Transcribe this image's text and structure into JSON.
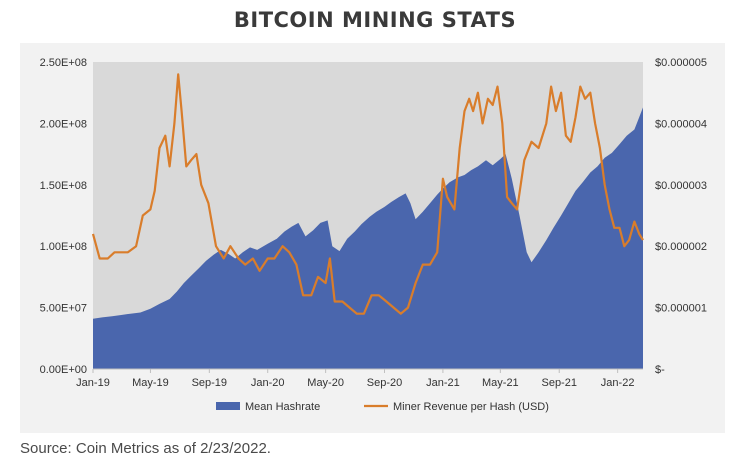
{
  "title": "BITCOIN MINING STATS",
  "source_note": "Source: Coin Metrics as of 2/23/2022.",
  "colors": {
    "panel_background": "#f2f2f2",
    "plot_background": "#d9d9d9",
    "hashrate": "#4a66ad",
    "revenue": "#d97d2b"
  },
  "chart_data": {
    "type": "area",
    "title": "BITCOIN MINING STATS",
    "xlabel": "",
    "ylabel": "",
    "y2label": "",
    "x_range": [
      "2019-01-01",
      "2022-02-23"
    ],
    "x_ticks": [
      {
        "label": "Jan-19",
        "date": "2019-01-01"
      },
      {
        "label": "May-19",
        "date": "2019-05-01"
      },
      {
        "label": "Sep-19",
        "date": "2019-09-01"
      },
      {
        "label": "Jan-20",
        "date": "2020-01-01"
      },
      {
        "label": "May-20",
        "date": "2020-05-01"
      },
      {
        "label": "Sep-20",
        "date": "2020-09-01"
      },
      {
        "label": "Jan-21",
        "date": "2021-01-01"
      },
      {
        "label": "May-21",
        "date": "2021-05-01"
      },
      {
        "label": "Sep-21",
        "date": "2021-09-01"
      },
      {
        "label": "Jan-22",
        "date": "2022-01-01"
      }
    ],
    "ylim": [
      0,
      250000000
    ],
    "y_ticks": [
      {
        "label": "0.00E+00",
        "value": 0
      },
      {
        "label": "5.00E+07",
        "value": 50000000
      },
      {
        "label": "1.00E+08",
        "value": 100000000
      },
      {
        "label": "1.50E+08",
        "value": 150000000
      },
      {
        "label": "2.00E+08",
        "value": 200000000
      },
      {
        "label": "2.50E+08",
        "value": 250000000
      }
    ],
    "y2lim": [
      0,
      5e-06
    ],
    "y2_ticks": [
      {
        "label": "$-",
        "value": 0
      },
      {
        "label": "$0.000001",
        "value": 1e-06
      },
      {
        "label": "$0.000002",
        "value": 2e-06
      },
      {
        "label": "$0.000003",
        "value": 3e-06
      },
      {
        "label": "$0.000004",
        "value": 4e-06
      },
      {
        "label": "$0.000005",
        "value": 5e-06
      }
    ],
    "grid": false,
    "legend_position": "bottom",
    "series": [
      {
        "name": "Mean Hashrate",
        "type": "area",
        "axis": "left",
        "color": "#4a66ad",
        "points": [
          [
            "2019-01-01",
            41000000
          ],
          [
            "2019-01-20",
            42000000
          ],
          [
            "2019-02-10",
            43000000
          ],
          [
            "2019-03-01",
            44000000
          ],
          [
            "2019-03-20",
            45000000
          ],
          [
            "2019-04-10",
            46000000
          ],
          [
            "2019-05-01",
            49000000
          ],
          [
            "2019-05-20",
            53000000
          ],
          [
            "2019-06-10",
            57000000
          ],
          [
            "2019-06-25",
            63000000
          ],
          [
            "2019-07-10",
            70000000
          ],
          [
            "2019-07-25",
            76000000
          ],
          [
            "2019-08-10",
            82000000
          ],
          [
            "2019-08-25",
            88000000
          ],
          [
            "2019-09-10",
            93000000
          ],
          [
            "2019-09-25",
            97000000
          ],
          [
            "2019-10-10",
            94000000
          ],
          [
            "2019-10-25",
            90000000
          ],
          [
            "2019-11-10",
            95000000
          ],
          [
            "2019-11-25",
            99000000
          ],
          [
            "2019-12-10",
            97000000
          ],
          [
            "2020-01-01",
            102000000
          ],
          [
            "2020-01-20",
            106000000
          ],
          [
            "2020-02-05",
            112000000
          ],
          [
            "2020-02-20",
            116000000
          ],
          [
            "2020-03-05",
            119000000
          ],
          [
            "2020-03-20",
            108000000
          ],
          [
            "2020-04-05",
            113000000
          ],
          [
            "2020-04-20",
            119000000
          ],
          [
            "2020-05-05",
            121000000
          ],
          [
            "2020-05-15",
            100000000
          ],
          [
            "2020-05-30",
            96000000
          ],
          [
            "2020-06-15",
            106000000
          ],
          [
            "2020-07-01",
            112000000
          ],
          [
            "2020-07-15",
            118000000
          ],
          [
            "2020-08-01",
            124000000
          ],
          [
            "2020-08-15",
            128000000
          ],
          [
            "2020-09-01",
            132000000
          ],
          [
            "2020-09-15",
            136000000
          ],
          [
            "2020-10-01",
            140000000
          ],
          [
            "2020-10-15",
            143000000
          ],
          [
            "2020-10-25",
            135000000
          ],
          [
            "2020-11-05",
            122000000
          ],
          [
            "2020-11-20",
            128000000
          ],
          [
            "2020-12-05",
            135000000
          ],
          [
            "2020-12-20",
            142000000
          ],
          [
            "2021-01-01",
            147000000
          ],
          [
            "2021-01-15",
            152000000
          ],
          [
            "2021-02-01",
            156000000
          ],
          [
            "2021-02-15",
            158000000
          ],
          [
            "2021-03-01",
            162000000
          ],
          [
            "2021-03-15",
            165000000
          ],
          [
            "2021-04-01",
            170000000
          ],
          [
            "2021-04-15",
            166000000
          ],
          [
            "2021-05-01",
            171000000
          ],
          [
            "2021-05-12",
            175000000
          ],
          [
            "2021-05-25",
            155000000
          ],
          [
            "2021-06-10",
            125000000
          ],
          [
            "2021-06-25",
            95000000
          ],
          [
            "2021-07-05",
            87000000
          ],
          [
            "2021-07-20",
            95000000
          ],
          [
            "2021-08-05",
            105000000
          ],
          [
            "2021-08-20",
            115000000
          ],
          [
            "2021-09-05",
            125000000
          ],
          [
            "2021-09-20",
            135000000
          ],
          [
            "2021-10-05",
            145000000
          ],
          [
            "2021-10-20",
            152000000
          ],
          [
            "2021-11-05",
            160000000
          ],
          [
            "2021-11-20",
            165000000
          ],
          [
            "2021-12-05",
            172000000
          ],
          [
            "2021-12-20",
            176000000
          ],
          [
            "2022-01-05",
            183000000
          ],
          [
            "2022-01-20",
            190000000
          ],
          [
            "2022-02-05",
            195000000
          ],
          [
            "2022-02-15",
            205000000
          ],
          [
            "2022-02-23",
            213000000
          ]
        ]
      },
      {
        "name": "Miner Revenue per Hash (USD)",
        "type": "line",
        "axis": "right",
        "color": "#d97d2b",
        "points": [
          [
            "2019-01-01",
            2.2e-06
          ],
          [
            "2019-01-15",
            1.8e-06
          ],
          [
            "2019-02-01",
            1.8e-06
          ],
          [
            "2019-02-15",
            1.9e-06
          ],
          [
            "2019-03-01",
            1.9e-06
          ],
          [
            "2019-03-15",
            1.9e-06
          ],
          [
            "2019-04-01",
            2e-06
          ],
          [
            "2019-04-15",
            2.5e-06
          ],
          [
            "2019-05-01",
            2.6e-06
          ],
          [
            "2019-05-10",
            2.9e-06
          ],
          [
            "2019-05-20",
            3.6e-06
          ],
          [
            "2019-06-01",
            3.8e-06
          ],
          [
            "2019-06-10",
            3.3e-06
          ],
          [
            "2019-06-20",
            4e-06
          ],
          [
            "2019-06-28",
            4.8e-06
          ],
          [
            "2019-07-05",
            4.2e-06
          ],
          [
            "2019-07-15",
            3.3e-06
          ],
          [
            "2019-07-25",
            3.4e-06
          ],
          [
            "2019-08-05",
            3.5e-06
          ],
          [
            "2019-08-15",
            3e-06
          ],
          [
            "2019-08-30",
            2.7e-06
          ],
          [
            "2019-09-15",
            2e-06
          ],
          [
            "2019-10-01",
            1.8e-06
          ],
          [
            "2019-10-15",
            2e-06
          ],
          [
            "2019-11-01",
            1.8e-06
          ],
          [
            "2019-11-15",
            1.7e-06
          ],
          [
            "2019-12-01",
            1.8e-06
          ],
          [
            "2019-12-15",
            1.6e-06
          ],
          [
            "2020-01-01",
            1.8e-06
          ],
          [
            "2020-01-15",
            1.8e-06
          ],
          [
            "2020-02-01",
            2e-06
          ],
          [
            "2020-02-15",
            1.9e-06
          ],
          [
            "2020-03-01",
            1.7e-06
          ],
          [
            "2020-03-15",
            1.2e-06
          ],
          [
            "2020-04-01",
            1.2e-06
          ],
          [
            "2020-04-15",
            1.5e-06
          ],
          [
            "2020-05-01",
            1.4e-06
          ],
          [
            "2020-05-10",
            1.8e-06
          ],
          [
            "2020-05-20",
            1.1e-06
          ],
          [
            "2020-06-05",
            1.1e-06
          ],
          [
            "2020-06-20",
            1e-06
          ],
          [
            "2020-07-05",
            9e-07
          ],
          [
            "2020-07-20",
            9e-07
          ],
          [
            "2020-08-05",
            1.2e-06
          ],
          [
            "2020-08-20",
            1.2e-06
          ],
          [
            "2020-09-05",
            1.1e-06
          ],
          [
            "2020-09-20",
            1e-06
          ],
          [
            "2020-10-05",
            9e-07
          ],
          [
            "2020-10-20",
            1e-06
          ],
          [
            "2020-11-05",
            1.4e-06
          ],
          [
            "2020-11-20",
            1.7e-06
          ],
          [
            "2020-12-05",
            1.7e-06
          ],
          [
            "2020-12-20",
            1.9e-06
          ],
          [
            "2021-01-01",
            3.1e-06
          ],
          [
            "2021-01-10",
            2.8e-06
          ],
          [
            "2021-01-25",
            2.6e-06
          ],
          [
            "2021-02-05",
            3.6e-06
          ],
          [
            "2021-02-15",
            4.2e-06
          ],
          [
            "2021-02-25",
            4.4e-06
          ],
          [
            "2021-03-05",
            4.2e-06
          ],
          [
            "2021-03-15",
            4.5e-06
          ],
          [
            "2021-03-25",
            4e-06
          ],
          [
            "2021-04-05",
            4.4e-06
          ],
          [
            "2021-04-15",
            4.3e-06
          ],
          [
            "2021-04-25",
            4.6e-06
          ],
          [
            "2021-05-05",
            4e-06
          ],
          [
            "2021-05-15",
            2.8e-06
          ],
          [
            "2021-05-25",
            2.7e-06
          ],
          [
            "2021-06-05",
            2.6e-06
          ],
          [
            "2021-06-20",
            3.4e-06
          ],
          [
            "2021-07-05",
            3.7e-06
          ],
          [
            "2021-07-20",
            3.6e-06
          ],
          [
            "2021-08-05",
            4e-06
          ],
          [
            "2021-08-15",
            4.6e-06
          ],
          [
            "2021-08-25",
            4.2e-06
          ],
          [
            "2021-09-05",
            4.5e-06
          ],
          [
            "2021-09-15",
            3.8e-06
          ],
          [
            "2021-09-25",
            3.7e-06
          ],
          [
            "2021-10-05",
            4.1e-06
          ],
          [
            "2021-10-15",
            4.6e-06
          ],
          [
            "2021-10-25",
            4.4e-06
          ],
          [
            "2021-11-05",
            4.5e-06
          ],
          [
            "2021-11-15",
            4e-06
          ],
          [
            "2021-11-25",
            3.6e-06
          ],
          [
            "2021-12-05",
            3e-06
          ],
          [
            "2021-12-15",
            2.6e-06
          ],
          [
            "2021-12-25",
            2.3e-06
          ],
          [
            "2022-01-05",
            2.3e-06
          ],
          [
            "2022-01-15",
            2e-06
          ],
          [
            "2022-01-25",
            2.1e-06
          ],
          [
            "2022-02-05",
            2.4e-06
          ],
          [
            "2022-02-15",
            2.2e-06
          ],
          [
            "2022-02-23",
            2.1e-06
          ]
        ]
      }
    ]
  }
}
